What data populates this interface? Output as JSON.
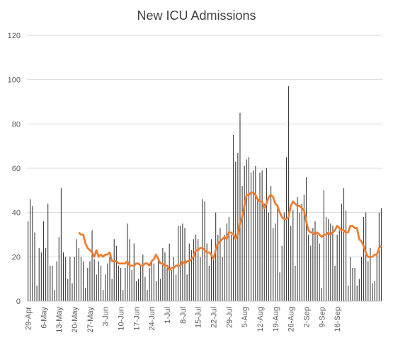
{
  "chart_data": {
    "type": "bar",
    "title": "New ICU Admissions",
    "xlabel": "",
    "ylabel": "",
    "ylim": [
      0,
      120
    ],
    "yticks": [
      0,
      20,
      40,
      60,
      80,
      100,
      120
    ],
    "grid": true,
    "legend": "none",
    "start_date": "29-Apr",
    "xtick_labels": [
      "29-Apr",
      "6-May",
      "13-May",
      "20-May",
      "27-May",
      "3-Jun",
      "10-Jun",
      "17-Jun",
      "24-Jun",
      "1-Jul",
      "8-Jul",
      "15-Jul",
      "22-Jul",
      "29-Jul",
      "5-Aug",
      "12-Aug",
      "19-Aug",
      "26-Aug",
      "2-Sep",
      "9-Sep",
      "16-Sep"
    ],
    "colors": {
      "bars": "#3a3a3a",
      "line": "#ed7d31",
      "grid": "#d9d9d9",
      "text": "#595959"
    },
    "series": [
      {
        "type": "bar",
        "values": [
          36,
          46,
          43,
          31,
          7,
          24,
          22,
          36,
          24,
          44,
          16,
          16,
          5,
          18,
          29,
          51,
          22,
          20,
          10,
          20,
          8,
          20,
          28,
          24,
          20,
          18,
          6,
          15,
          18,
          32,
          19,
          12,
          18,
          16,
          5,
          12,
          17,
          20,
          10,
          28,
          25,
          16,
          15,
          5,
          15,
          35,
          28,
          14,
          26,
          9,
          10,
          16,
          21,
          11,
          5,
          15,
          18,
          17,
          9,
          18,
          10,
          24,
          22,
          15,
          26,
          14,
          20,
          12,
          34,
          34,
          35,
          33,
          12,
          26,
          23,
          28,
          30,
          28,
          20,
          46,
          45,
          26,
          16,
          28,
          19,
          40,
          30,
          33,
          20,
          30,
          35,
          38,
          30,
          75,
          63,
          67,
          85,
          52,
          61,
          64,
          65,
          58,
          59,
          61,
          47,
          58,
          59,
          44,
          60,
          40,
          52,
          33,
          35,
          42,
          13,
          25,
          40,
          65,
          97,
          34,
          41,
          16,
          47,
          40,
          44,
          48,
          56,
          30,
          25,
          33,
          36,
          30,
          26,
          6,
          50,
          38,
          37,
          35,
          34,
          16,
          30,
          32,
          44,
          51,
          41,
          7,
          20,
          15,
          15,
          7,
          10,
          20,
          38,
          40,
          18,
          24,
          8,
          9,
          22,
          40,
          42
        ],
        "line_values_note": ""
      },
      {
        "type": "line",
        "values": [
          31,
          30,
          30,
          26,
          24,
          23,
          22,
          20,
          23,
          20,
          21,
          20,
          21,
          21,
          22,
          18,
          18,
          18,
          17,
          17,
          17,
          17,
          18,
          16,
          16,
          16,
          17,
          17,
          16,
          16,
          17,
          17,
          16,
          18,
          19,
          21,
          19,
          17,
          17,
          16,
          16,
          14,
          15,
          15,
          16,
          16,
          16,
          18,
          17,
          18,
          18,
          19,
          20,
          23,
          23,
          24,
          24,
          23,
          22,
          22,
          21,
          19,
          23,
          26,
          27,
          28,
          29,
          28,
          31,
          31,
          30,
          28,
          30,
          35,
          38,
          43,
          48,
          48,
          49,
          49,
          48,
          46,
          45,
          45,
          42,
          44,
          47,
          48,
          47,
          44,
          43,
          40,
          38,
          37,
          37,
          38,
          43,
          45,
          44,
          43,
          43,
          42,
          41,
          36,
          32,
          31,
          31,
          30,
          31,
          30,
          29,
          30,
          30,
          31,
          30,
          31,
          32,
          34,
          33,
          32,
          32,
          31,
          31,
          34,
          34,
          33,
          33,
          28,
          27,
          25,
          22,
          20,
          20,
          20,
          21,
          21,
          24,
          25
        ]
      }
    ]
  }
}
